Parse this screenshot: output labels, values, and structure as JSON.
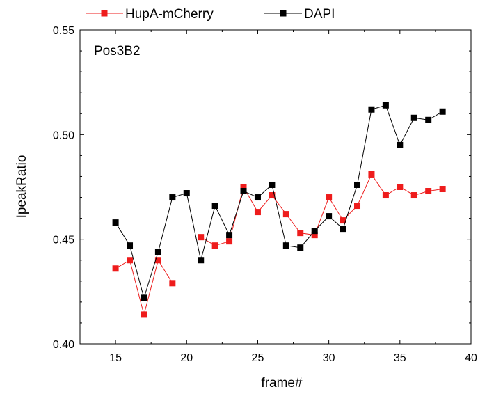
{
  "chart_data": {
    "type": "line",
    "title": "",
    "xlabel": "frame#",
    "ylabel": "IpeakRatio",
    "xlim": [
      12.5,
      40
    ],
    "ylim": [
      0.4,
      0.55
    ],
    "x_ticks": [
      15,
      20,
      25,
      30,
      35,
      40
    ],
    "x_tick_labels": [
      "15",
      "20",
      "25",
      "30",
      "35",
      "40"
    ],
    "y_ticks": [
      0.4,
      0.45,
      0.5,
      0.55
    ],
    "y_tick_labels": [
      "0.40",
      "0.45",
      "0.50",
      "0.55"
    ],
    "grid": false,
    "legend_position": "top",
    "annotation": "Pos3B2",
    "series": [
      {
        "name": "HupA-mCherry",
        "color": "#ee1c1c",
        "marker": "square",
        "points": [
          [
            15,
            0.436
          ],
          [
            16,
            0.44
          ],
          [
            17,
            0.414
          ],
          [
            18,
            0.44
          ],
          [
            19,
            0.429
          ],
          null,
          [
            21,
            0.451
          ],
          [
            22,
            0.447
          ],
          [
            23,
            0.449
          ],
          [
            24,
            0.475
          ],
          [
            25,
            0.463
          ],
          [
            26,
            0.471
          ],
          [
            27,
            0.462
          ],
          [
            28,
            0.453
          ],
          [
            29,
            0.452
          ],
          [
            30,
            0.47
          ],
          [
            31,
            0.459
          ],
          [
            32,
            0.466
          ],
          [
            33,
            0.481
          ],
          [
            34,
            0.471
          ],
          [
            35,
            0.475
          ],
          [
            36,
            0.471
          ],
          [
            37,
            0.473
          ],
          [
            38,
            0.474
          ]
        ]
      },
      {
        "name": "DAPI",
        "color": "#000000",
        "marker": "square",
        "points": [
          [
            15,
            0.458
          ],
          [
            16,
            0.447
          ],
          [
            17,
            0.422
          ],
          [
            18,
            0.444
          ],
          [
            19,
            0.47
          ],
          [
            20,
            0.472
          ],
          [
            21,
            0.44
          ],
          [
            22,
            0.466
          ],
          [
            23,
            0.452
          ],
          [
            24,
            0.473
          ],
          [
            25,
            0.47
          ],
          [
            26,
            0.476
          ],
          [
            27,
            0.447
          ],
          [
            28,
            0.446
          ],
          [
            29,
            0.454
          ],
          [
            30,
            0.461
          ],
          [
            31,
            0.455
          ],
          [
            32,
            0.476
          ],
          [
            33,
            0.512
          ],
          [
            34,
            0.514
          ],
          [
            35,
            0.495
          ],
          [
            36,
            0.508
          ],
          [
            37,
            0.507
          ],
          [
            38,
            0.511
          ]
        ]
      }
    ]
  }
}
